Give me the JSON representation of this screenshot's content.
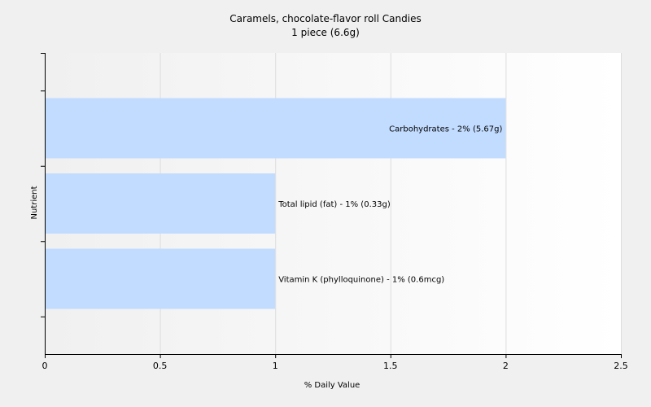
{
  "chart_data": {
    "type": "bar",
    "orientation": "horizontal",
    "title": "Caramels, chocolate-flavor roll Candies",
    "subtitle": "1 piece (6.6g)",
    "xlabel": "% Daily Value",
    "ylabel": "Nutrient",
    "xlim": [
      0,
      2.5
    ],
    "xticks": [
      "0",
      "0.5",
      "1",
      "1.5",
      "2",
      "2.5"
    ],
    "xtick_values": [
      0,
      0.5,
      1,
      1.5,
      2,
      2.5
    ],
    "grid": "vertical",
    "categories": [
      "Carbohydrates",
      "Total lipid (fat)",
      "Vitamin K (phylloquinone)"
    ],
    "values": [
      2,
      1,
      1
    ],
    "data_labels": [
      "Carbohydrates - 2% (5.67g)",
      "Total lipid (fat) - 1% (0.33g)",
      "Vitamin K (phylloquinone) - 1% (0.6mcg)"
    ],
    "colors": {
      "bar": "#c2dcff",
      "background": "#f0f0f0",
      "plot_background": "#ffffff",
      "grid": "#dddddd",
      "axis": "#000000"
    }
  }
}
